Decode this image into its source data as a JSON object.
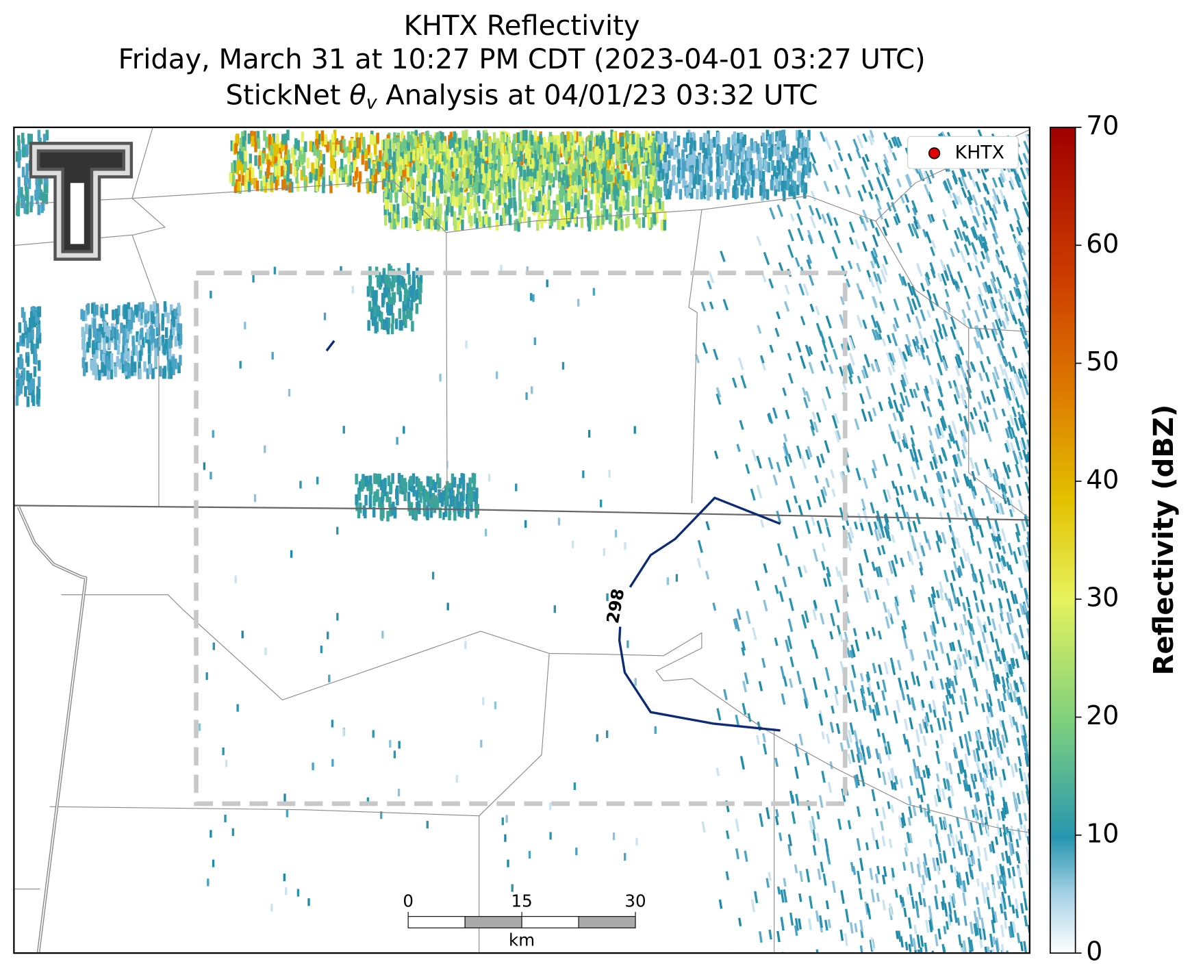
{
  "title": {
    "line1": "KHTX Reflectivity",
    "line2": "Friday, March 31 at 10:27 PM CDT (2023-04-01 03:27 UTC)",
    "line3": {
      "before": "StickNet ",
      "symbol": "θ",
      "subscript": "v",
      "after": " Analysis at 04/01/23 03:32 UTC"
    }
  },
  "colorbar": {
    "label": "Reflectivity (dBZ)",
    "lim": [
      0,
      70
    ],
    "ticks": [
      0,
      10,
      20,
      30,
      40,
      50,
      60,
      70
    ]
  },
  "legend": {
    "label": "KHTX",
    "color": "#e00000"
  },
  "contour": {
    "label": 298,
    "color": "#0d2a78"
  },
  "scale_bar": {
    "ticks": [
      0,
      15,
      30
    ],
    "unit": "km"
  }
}
